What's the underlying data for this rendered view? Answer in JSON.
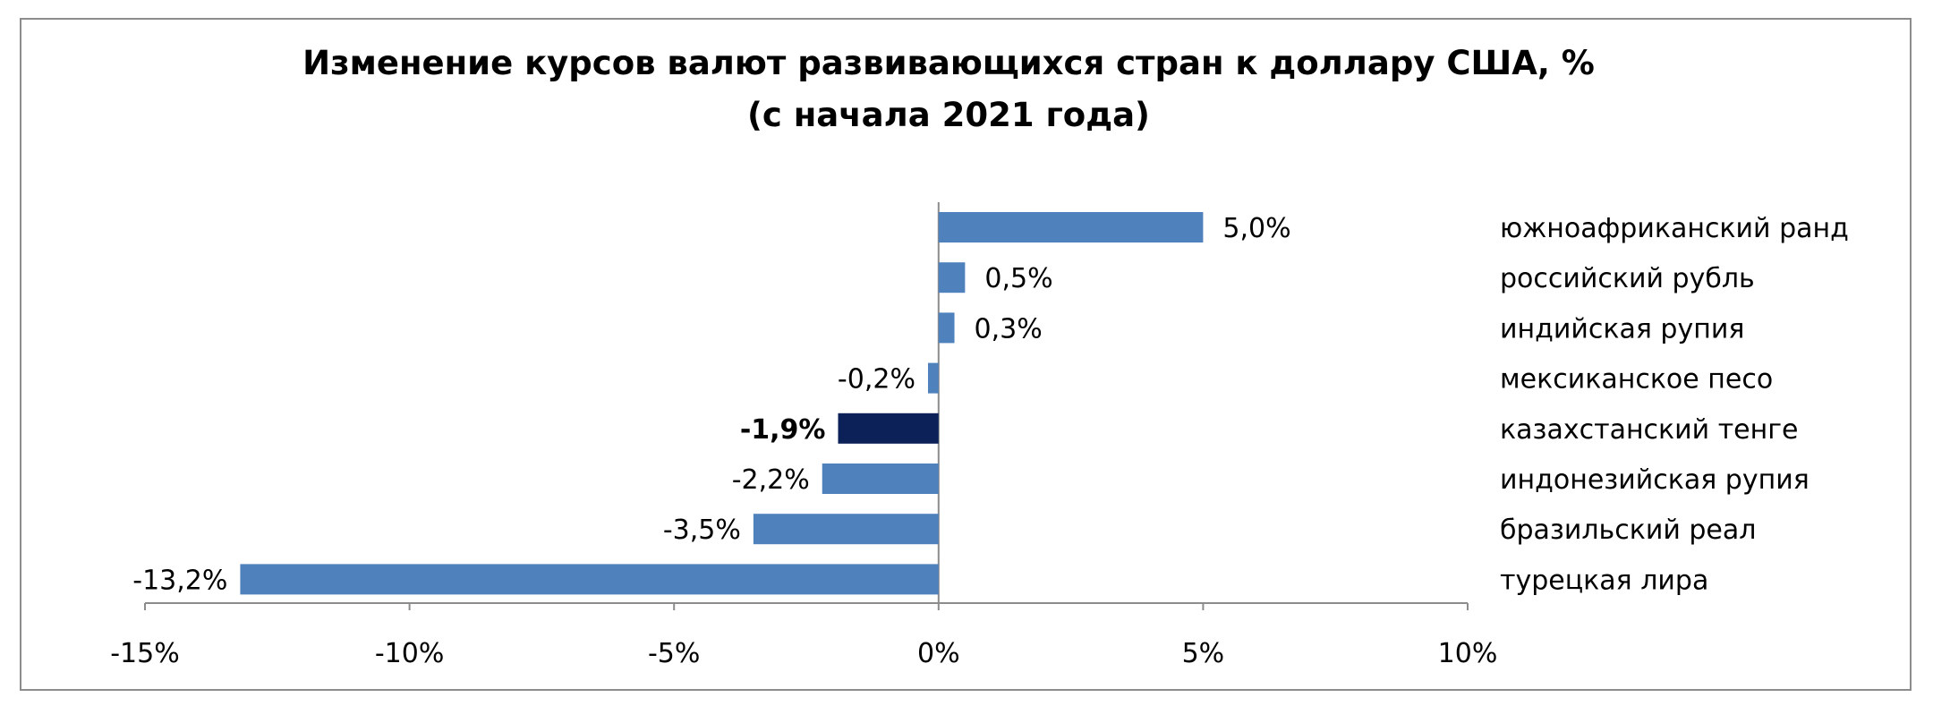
{
  "chart_data": {
    "type": "bar",
    "orientation": "horizontal",
    "title": "Изменение курсов валют развивающихся стран к доллару США, %",
    "subtitle": "(с начала 2021 года)",
    "categories": [
      "южноафриканский ранд",
      "российский рубль",
      "индийская рупия",
      "мексиканское песо",
      "казахстанский тенге",
      "индонезийская рупия",
      "бразильский реал",
      "турецкая лира"
    ],
    "values": [
      5.0,
      0.5,
      0.3,
      -0.2,
      -1.9,
      -2.2,
      -3.5,
      -13.2
    ],
    "value_labels": [
      "5,0%",
      "0,5%",
      "0,3%",
      "-0,2%",
      "-1,9%",
      "-2,2%",
      "-3,5%",
      "-13,2%"
    ],
    "highlight_index": 4,
    "xlim": [
      -15,
      10
    ],
    "xticks": [
      -15,
      -10,
      -5,
      0,
      5,
      10
    ],
    "xtick_labels": [
      "-15%",
      "-10%",
      "-5%",
      "0%",
      "5%",
      "10%"
    ],
    "xlabel": "",
    "ylabel": "",
    "grid": false,
    "legend": "none",
    "bar_color": "#4f81bd",
    "highlight_color": "#0b2158"
  }
}
